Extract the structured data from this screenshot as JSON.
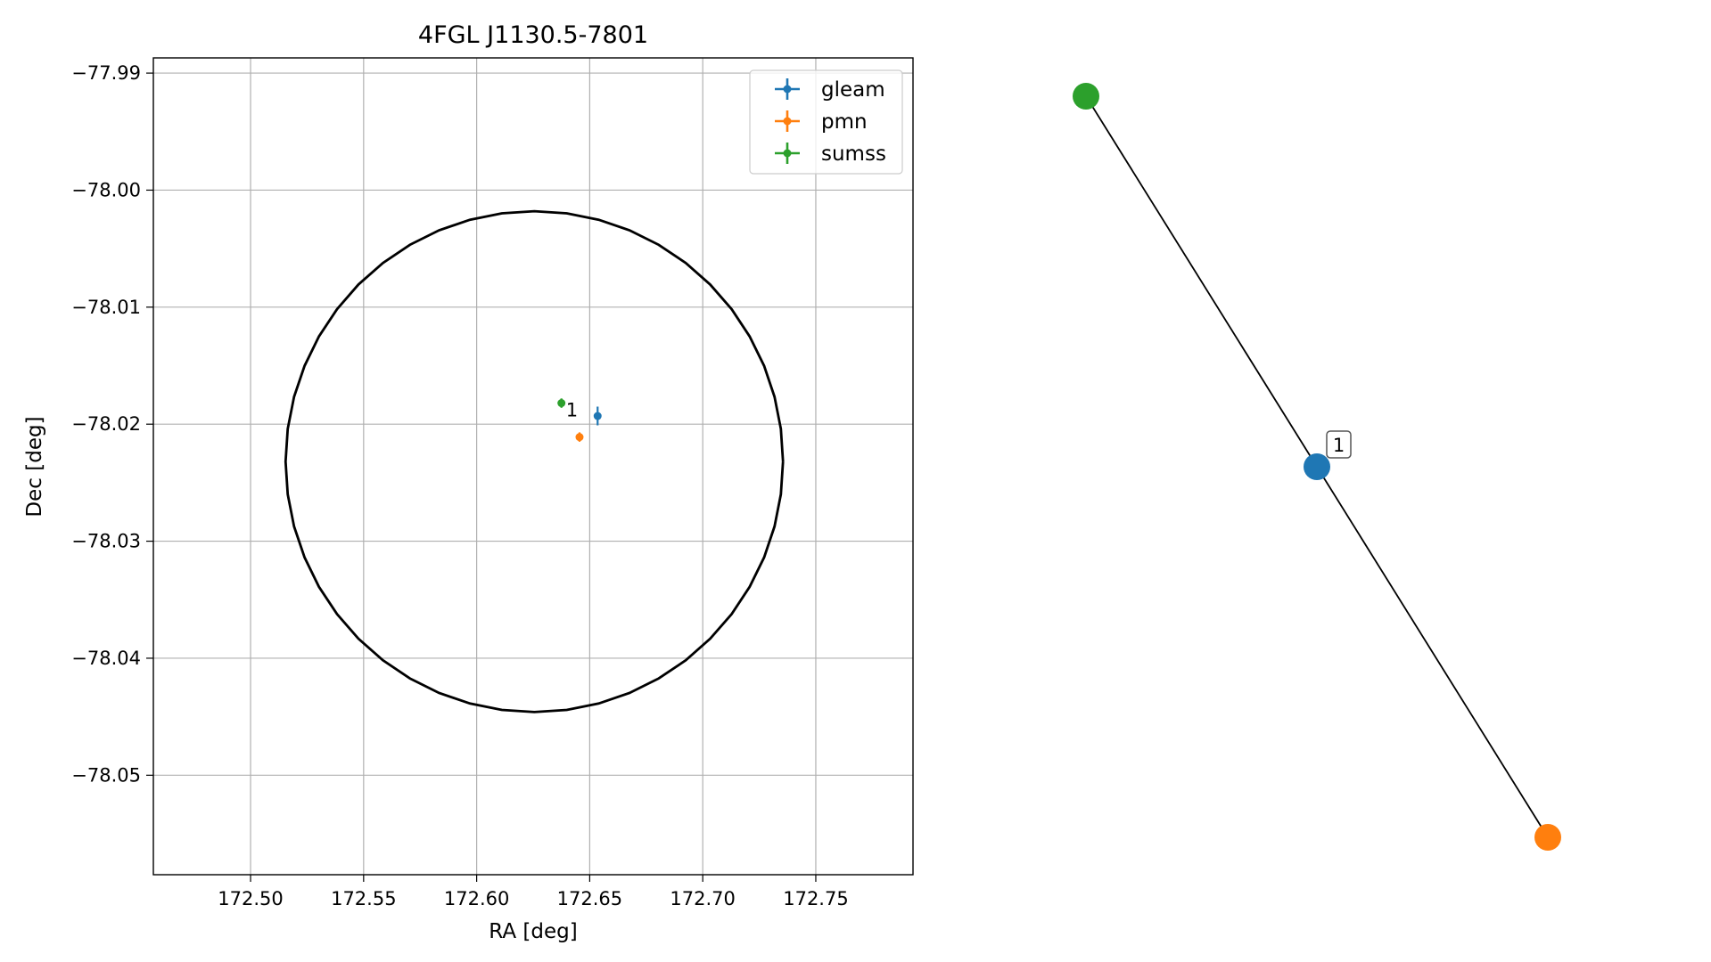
{
  "chart_data": [
    {
      "type": "scatter",
      "title": "4FGL J1130.5-7801",
      "xlabel": "RA [deg]",
      "ylabel": "Dec [deg]",
      "xlim": [
        172.457,
        172.793
      ],
      "ylim": [
        -78.0585,
        -77.9887
      ],
      "xticks": [
        172.5,
        172.55,
        172.6,
        172.65,
        172.7,
        172.75
      ],
      "xtick_labels": [
        "172.50",
        "172.55",
        "172.60",
        "172.65",
        "172.70",
        "172.75"
      ],
      "yticks": [
        -77.99,
        -78.0,
        -78.01,
        -78.02,
        -78.03,
        -78.04,
        -78.05
      ],
      "ytick_labels": [
        "−77.99",
        "−78.00",
        "−78.01",
        "−78.02",
        "−78.03",
        "−78.04",
        "−78.05"
      ],
      "grid": true,
      "legend_position": "top-right",
      "series": [
        {
          "name": "gleam",
          "color": "#1f77b4",
          "x": 172.6535,
          "y": -78.0193,
          "xerr": 0.001,
          "yerr": 0.0008
        },
        {
          "name": "pmn",
          "color": "#ff7f0e",
          "x": 172.6455,
          "y": -78.0211,
          "xerr": 0.0008,
          "yerr": 0.0004
        },
        {
          "name": "sumss",
          "color": "#2ca02c",
          "x": 172.6375,
          "y": -78.0182,
          "xerr": 0.0008,
          "yerr": 0.0004
        }
      ],
      "ellipse": {
        "center": [
          172.6255,
          -78.0232
        ],
        "semi_axis_ra": 0.11,
        "semi_axis_dec": 0.0214,
        "color": "#000000"
      },
      "annotations": [
        {
          "text": "1",
          "x": 172.6395,
          "y": -78.0188
        }
      ]
    },
    {
      "type": "graph",
      "nodes": [
        {
          "name": "sumss",
          "color": "#2ca02c"
        },
        {
          "name": "gleam",
          "color": "#1f77b4",
          "label": "1"
        },
        {
          "name": "pmn",
          "color": "#ff7f0e"
        }
      ],
      "edges": [
        [
          "sumss",
          "gleam"
        ],
        [
          "gleam",
          "pmn"
        ]
      ]
    }
  ]
}
